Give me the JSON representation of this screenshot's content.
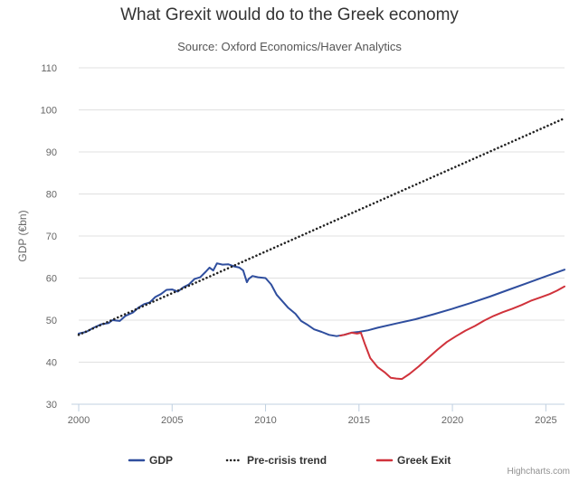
{
  "chart_data": {
    "type": "line",
    "title": "What Grexit would do to the Greek economy",
    "subtitle": "Source: Oxford Economics/Haver Analytics",
    "ylabel": "GDP (€bn)",
    "xlabel": "",
    "xlim": [
      2000,
      2026
    ],
    "ylim": [
      30,
      110
    ],
    "x_ticks": [
      2000,
      2005,
      2010,
      2015,
      2020,
      2025
    ],
    "y_ticks": [
      30,
      40,
      50,
      60,
      70,
      80,
      90,
      100,
      110
    ],
    "grid": "horizontal",
    "legend_position": "bottom",
    "series": [
      {
        "name": "GDP",
        "color": "#2f4e9e",
        "style": "solid",
        "points": [
          [
            2000.0,
            46.8
          ],
          [
            2000.4,
            47.2
          ],
          [
            2000.8,
            48.2
          ],
          [
            2001.2,
            49.0
          ],
          [
            2001.6,
            49.3
          ],
          [
            2001.8,
            50.0
          ],
          [
            2002.2,
            49.8
          ],
          [
            2002.5,
            51.0
          ],
          [
            2002.9,
            51.8
          ],
          [
            2003.2,
            53.0
          ],
          [
            2003.5,
            53.8
          ],
          [
            2003.8,
            54.2
          ],
          [
            2004.1,
            55.5
          ],
          [
            2004.4,
            56.2
          ],
          [
            2004.7,
            57.2
          ],
          [
            2005.0,
            57.3
          ],
          [
            2005.3,
            56.8
          ],
          [
            2005.6,
            57.8
          ],
          [
            2005.9,
            58.5
          ],
          [
            2006.2,
            59.8
          ],
          [
            2006.5,
            60.2
          ],
          [
            2006.8,
            61.5
          ],
          [
            2007.0,
            62.5
          ],
          [
            2007.2,
            61.8
          ],
          [
            2007.4,
            63.5
          ],
          [
            2007.7,
            63.2
          ],
          [
            2008.0,
            63.3
          ],
          [
            2008.3,
            62.8
          ],
          [
            2008.6,
            62.5
          ],
          [
            2008.8,
            61.8
          ],
          [
            2009.0,
            59.0
          ],
          [
            2009.1,
            59.8
          ],
          [
            2009.3,
            60.5
          ],
          [
            2009.6,
            60.2
          ],
          [
            2010.0,
            60.0
          ],
          [
            2010.3,
            58.5
          ],
          [
            2010.6,
            56.0
          ],
          [
            2010.9,
            54.5
          ],
          [
            2011.2,
            53.0
          ],
          [
            2011.6,
            51.5
          ],
          [
            2011.9,
            49.8
          ],
          [
            2012.2,
            49.0
          ],
          [
            2012.6,
            47.8
          ],
          [
            2013.0,
            47.2
          ],
          [
            2013.4,
            46.5
          ],
          [
            2013.8,
            46.2
          ],
          [
            2014.2,
            46.5
          ],
          [
            2014.6,
            47.0
          ],
          [
            2015.0,
            47.2
          ],
          [
            2015.5,
            47.6
          ],
          [
            2016.0,
            48.2
          ],
          [
            2017.0,
            49.2
          ],
          [
            2018.0,
            50.2
          ],
          [
            2019.0,
            51.4
          ],
          [
            2020.0,
            52.7
          ],
          [
            2021.0,
            54.1
          ],
          [
            2022.0,
            55.6
          ],
          [
            2023.0,
            57.2
          ],
          [
            2024.0,
            58.8
          ],
          [
            2025.0,
            60.4
          ],
          [
            2026.0,
            62.0
          ]
        ]
      },
      {
        "name": "Pre-crisis trend",
        "color": "#222222",
        "style": "dotted",
        "points": [
          [
            2000.0,
            46.5
          ],
          [
            2026.0,
            98.0
          ]
        ]
      },
      {
        "name": "Greek Exit",
        "color": "#d0323b",
        "style": "solid",
        "points": [
          [
            2014.0,
            46.3
          ],
          [
            2014.3,
            46.6
          ],
          [
            2014.6,
            47.0
          ],
          [
            2014.9,
            46.8
          ],
          [
            2015.1,
            47.0
          ],
          [
            2015.3,
            44.5
          ],
          [
            2015.6,
            41.0
          ],
          [
            2016.0,
            38.8
          ],
          [
            2016.4,
            37.5
          ],
          [
            2016.7,
            36.3
          ],
          [
            2017.0,
            36.1
          ],
          [
            2017.3,
            36.0
          ],
          [
            2017.7,
            37.2
          ],
          [
            2018.2,
            39.0
          ],
          [
            2018.7,
            41.0
          ],
          [
            2019.2,
            43.0
          ],
          [
            2019.7,
            44.8
          ],
          [
            2020.2,
            46.2
          ],
          [
            2020.7,
            47.5
          ],
          [
            2021.2,
            48.6
          ],
          [
            2021.7,
            49.9
          ],
          [
            2022.2,
            51.0
          ],
          [
            2022.7,
            51.9
          ],
          [
            2023.2,
            52.7
          ],
          [
            2023.7,
            53.6
          ],
          [
            2024.2,
            54.6
          ],
          [
            2024.7,
            55.4
          ],
          [
            2025.2,
            56.2
          ],
          [
            2025.6,
            57.0
          ],
          [
            2026.0,
            58.0
          ]
        ]
      }
    ]
  },
  "credits": "Highcharts.com"
}
